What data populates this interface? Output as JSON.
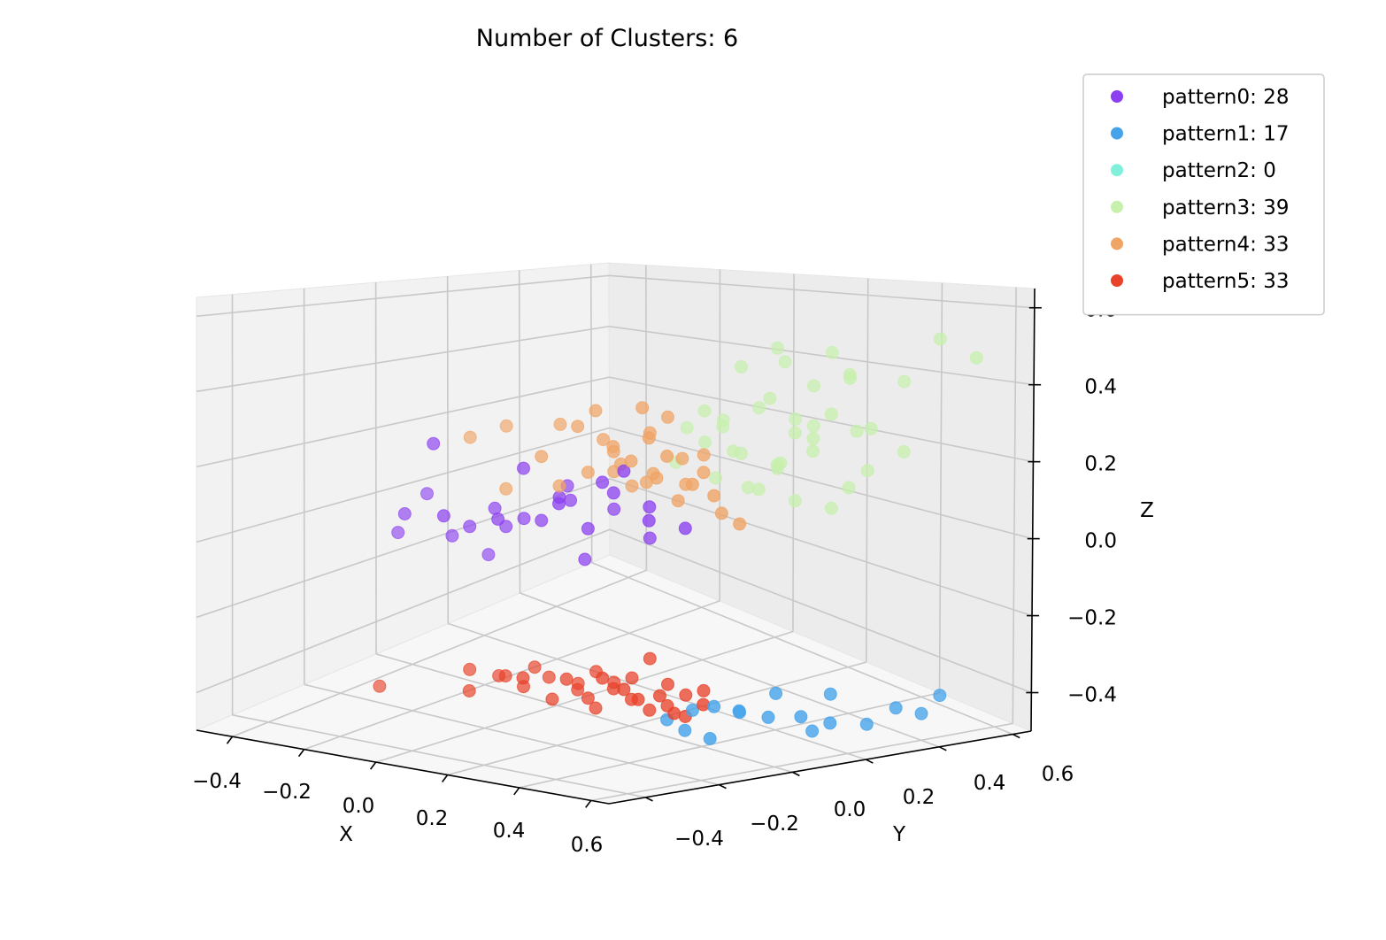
{
  "chart_data": {
    "type": "scatter",
    "title": "Number of Clusters: 6",
    "xlabel": "X",
    "ylabel": "Y",
    "zlabel": "Z",
    "xlim": [
      -0.5,
      0.65
    ],
    "ylim": [
      -0.5,
      0.65
    ],
    "zlim": [
      -0.5,
      0.65
    ],
    "x_ticks": [
      -0.4,
      -0.2,
      0.0,
      0.2,
      0.4,
      0.6
    ],
    "y_ticks": [
      -0.4,
      -0.2,
      0.0,
      0.2,
      0.4,
      0.6
    ],
    "z_ticks": [
      -0.4,
      -0.2,
      0.0,
      0.2,
      0.4,
      0.6
    ],
    "x_tick_labels": [
      "−0.4",
      "−0.2",
      "0.0",
      "0.2",
      "0.4",
      "0.6"
    ],
    "y_tick_labels": [
      "−0.4",
      "−0.2",
      "0.0",
      "0.2",
      "0.4",
      "0.6"
    ],
    "z_tick_labels": [
      "−0.4",
      "−0.2",
      "0.0",
      "0.2",
      "0.4",
      "0.6"
    ],
    "grid": true,
    "legend_position": "top-right",
    "series": [
      {
        "name": "pattern0: 28",
        "color": "#8b3ff0",
        "points": [
          [
            -0.45,
            0.0,
            -0.05
          ],
          [
            -0.42,
            0.05,
            0.05
          ],
          [
            -0.38,
            -0.05,
            0.02
          ],
          [
            -0.35,
            0.05,
            -0.05
          ],
          [
            -0.3,
            -0.05,
            0.22
          ],
          [
            -0.3,
            0.1,
            -0.1
          ],
          [
            -0.25,
            0.0,
            0.0
          ],
          [
            -0.22,
            -0.1,
            0.05
          ],
          [
            -0.2,
            0.05,
            0.0
          ],
          [
            -0.18,
            0.0,
            0.06
          ],
          [
            -0.15,
            0.05,
            0.03
          ],
          [
            -0.12,
            -0.05,
            0.05
          ],
          [
            -0.1,
            0.0,
            0.18
          ],
          [
            -0.08,
            0.1,
            0.12
          ],
          [
            -0.05,
            0.0,
            0.05
          ],
          [
            -0.02,
            0.05,
            0.1
          ],
          [
            0.0,
            0.0,
            0.12
          ],
          [
            0.02,
            0.05,
            -0.05
          ],
          [
            0.05,
            -0.05,
            0.12
          ],
          [
            0.05,
            0.1,
            0.08
          ],
          [
            0.08,
            0.0,
            0.05
          ],
          [
            0.1,
            0.05,
            0.14
          ],
          [
            0.12,
            0.0,
            0.18
          ],
          [
            0.15,
            0.1,
            0.02
          ],
          [
            0.18,
            0.0,
            0.22
          ],
          [
            0.2,
            0.05,
            0.12
          ],
          [
            0.25,
            0.0,
            0.1
          ],
          [
            0.3,
            0.05,
            0.08
          ]
        ]
      },
      {
        "name": "pattern1: 17",
        "color": "#46a3ea",
        "points": [
          [
            0.3,
            0.0,
            -0.42
          ],
          [
            0.32,
            0.05,
            -0.4
          ],
          [
            0.35,
            0.0,
            -0.44
          ],
          [
            0.38,
            0.05,
            -0.38
          ],
          [
            0.4,
            0.1,
            -0.4
          ],
          [
            0.42,
            0.0,
            -0.45
          ],
          [
            0.45,
            0.15,
            -0.35
          ],
          [
            0.45,
            0.05,
            -0.38
          ],
          [
            0.48,
            0.1,
            -0.4
          ],
          [
            0.5,
            0.2,
            -0.45
          ],
          [
            0.5,
            0.25,
            -0.36
          ],
          [
            0.52,
            0.15,
            -0.4
          ],
          [
            0.55,
            0.2,
            -0.42
          ],
          [
            0.55,
            0.3,
            -0.44
          ],
          [
            0.58,
            0.35,
            -0.4
          ],
          [
            0.6,
            0.4,
            -0.42
          ],
          [
            0.6,
            0.45,
            -0.38
          ]
        ]
      },
      {
        "name": "pattern2: 0",
        "color": "#80f0dc",
        "points": []
      },
      {
        "name": "pattern3: 39",
        "color": "#c6f0ac",
        "points": [
          [
            0.2,
            0.3,
            0.45
          ],
          [
            0.25,
            0.35,
            0.5
          ],
          [
            0.3,
            0.4,
            0.4
          ],
          [
            0.35,
            0.45,
            0.42
          ],
          [
            0.2,
            0.25,
            0.3
          ],
          [
            0.25,
            0.3,
            0.35
          ],
          [
            0.3,
            0.35,
            0.32
          ],
          [
            0.35,
            0.3,
            0.3
          ],
          [
            0.4,
            0.35,
            0.35
          ],
          [
            0.15,
            0.25,
            0.25
          ],
          [
            0.2,
            0.3,
            0.22
          ],
          [
            0.25,
            0.35,
            0.18
          ],
          [
            0.3,
            0.25,
            0.15
          ],
          [
            0.35,
            0.3,
            0.12
          ],
          [
            0.4,
            0.35,
            0.1
          ],
          [
            0.45,
            0.4,
            0.2
          ],
          [
            0.5,
            0.45,
            0.25
          ],
          [
            0.5,
            0.3,
            0.18
          ],
          [
            0.1,
            0.25,
            0.28
          ],
          [
            0.15,
            0.3,
            0.3
          ],
          [
            0.2,
            0.2,
            0.35
          ],
          [
            0.28,
            0.3,
            0.38
          ],
          [
            0.32,
            0.38,
            0.3
          ],
          [
            0.36,
            0.34,
            0.28
          ],
          [
            0.4,
            0.3,
            0.26
          ],
          [
            0.22,
            0.4,
            0.45
          ],
          [
            0.3,
            0.45,
            0.48
          ],
          [
            0.55,
            0.5,
            0.55
          ],
          [
            0.6,
            0.55,
            0.5
          ],
          [
            0.45,
            0.5,
            0.42
          ],
          [
            0.38,
            0.42,
            0.44
          ],
          [
            0.12,
            0.2,
            0.2
          ],
          [
            0.18,
            0.25,
            0.16
          ],
          [
            0.24,
            0.28,
            0.14
          ],
          [
            0.28,
            0.32,
            0.2
          ],
          [
            0.33,
            0.28,
            0.22
          ],
          [
            0.42,
            0.4,
            0.3
          ],
          [
            0.48,
            0.38,
            0.32
          ],
          [
            0.26,
            0.22,
            0.25
          ]
        ]
      },
      {
        "name": "pattern4: 33",
        "color": "#f0a466",
        "points": [
          [
            -0.3,
            0.05,
            0.22
          ],
          [
            -0.25,
            0.1,
            0.25
          ],
          [
            -0.2,
            0.05,
            0.1
          ],
          [
            -0.1,
            0.1,
            0.28
          ],
          [
            -0.05,
            0.0,
            0.22
          ],
          [
            0.0,
            0.05,
            0.3
          ],
          [
            0.02,
            0.1,
            0.26
          ],
          [
            0.05,
            0.05,
            0.35
          ],
          [
            0.08,
            0.0,
            0.2
          ],
          [
            0.1,
            0.1,
            0.15
          ],
          [
            0.12,
            0.05,
            0.22
          ],
          [
            0.15,
            0.1,
            0.3
          ],
          [
            0.18,
            0.05,
            0.38
          ],
          [
            0.2,
            0.1,
            0.35
          ],
          [
            0.2,
            0.0,
            0.25
          ],
          [
            0.22,
            0.05,
            0.2
          ],
          [
            0.25,
            0.1,
            0.18
          ],
          [
            0.28,
            0.05,
            0.15
          ],
          [
            0.3,
            0.1,
            0.22
          ],
          [
            0.32,
            0.05,
            0.2
          ],
          [
            0.35,
            0.1,
            0.12
          ],
          [
            0.38,
            0.05,
            0.18
          ],
          [
            0.4,
            0.1,
            0.1
          ],
          [
            0.15,
            0.0,
            0.28
          ],
          [
            0.1,
            0.05,
            0.25
          ],
          [
            0.05,
            0.1,
            0.18
          ],
          [
            0.0,
            0.0,
            0.15
          ],
          [
            0.25,
            0.0,
            0.32
          ],
          [
            0.3,
            0.0,
            0.28
          ],
          [
            0.22,
            0.12,
            0.24
          ],
          [
            0.18,
            0.08,
            0.2
          ],
          [
            0.12,
            0.12,
            0.16
          ],
          [
            0.28,
            0.12,
            0.26
          ]
        ]
      },
      {
        "name": "pattern5: 33",
        "color": "#e8422a",
        "points": [
          [
            -0.45,
            -0.05,
            -0.45
          ],
          [
            -0.25,
            0.0,
            -0.38
          ],
          [
            -0.22,
            0.05,
            -0.4
          ],
          [
            -0.2,
            -0.05,
            -0.42
          ],
          [
            -0.15,
            0.0,
            -0.38
          ],
          [
            -0.12,
            0.05,
            -0.36
          ],
          [
            -0.1,
            0.0,
            -0.4
          ],
          [
            -0.08,
            0.05,
            -0.38
          ],
          [
            -0.05,
            -0.05,
            -0.36
          ],
          [
            -0.02,
            0.0,
            -0.42
          ],
          [
            0.0,
            0.05,
            -0.4
          ],
          [
            0.02,
            0.0,
            -0.36
          ],
          [
            0.05,
            0.05,
            -0.44
          ],
          [
            0.08,
            0.0,
            -0.4
          ],
          [
            0.1,
            0.05,
            -0.38
          ],
          [
            0.12,
            0.0,
            -0.34
          ],
          [
            0.15,
            0.05,
            -0.4
          ],
          [
            0.18,
            0.0,
            -0.36
          ],
          [
            0.2,
            0.05,
            -0.42
          ],
          [
            0.22,
            0.0,
            -0.38
          ],
          [
            0.25,
            0.05,
            -0.4
          ],
          [
            0.28,
            0.0,
            -0.36
          ],
          [
            0.3,
            0.05,
            -0.42
          ],
          [
            0.32,
            0.0,
            -0.4
          ],
          [
            0.35,
            0.05,
            -0.38
          ],
          [
            0.15,
            0.1,
            -0.3
          ],
          [
            0.1,
            0.1,
            -0.36
          ],
          [
            0.05,
            0.1,
            -0.38
          ],
          [
            0.0,
            0.1,
            -0.36
          ],
          [
            -0.05,
            0.1,
            -0.4
          ],
          [
            0.2,
            0.1,
            -0.36
          ],
          [
            0.25,
            0.1,
            -0.38
          ],
          [
            0.3,
            0.1,
            -0.36
          ]
        ]
      }
    ]
  }
}
